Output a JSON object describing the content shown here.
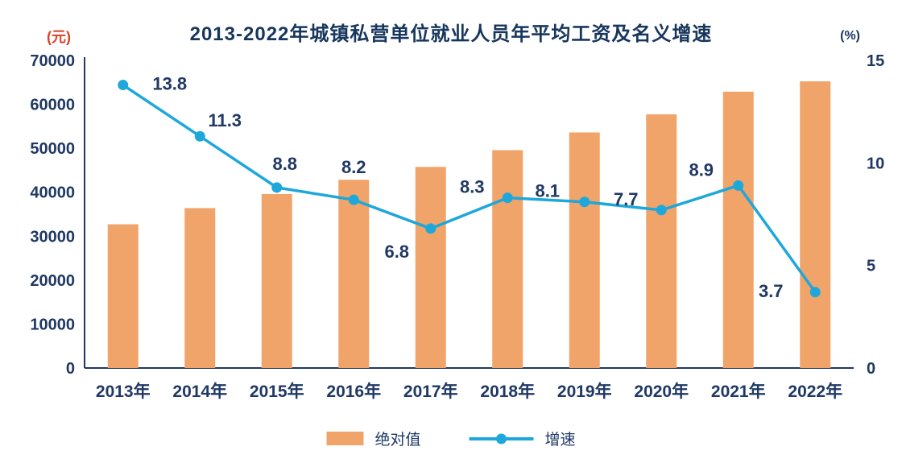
{
  "title": "2013-2022年城镇私营单位就业人员年平均工资及名义增速",
  "left_axis_unit": "(元)",
  "right_axis_unit": "(%)",
  "legend": {
    "bar_label": "绝对值",
    "line_label": "增速"
  },
  "chart_data": {
    "type": "bar+line",
    "title": "2013-2022年城镇私营单位就业人员年平均工资及名义增速",
    "categories": [
      "2013年",
      "2014年",
      "2015年",
      "2016年",
      "2017年",
      "2018年",
      "2019年",
      "2020年",
      "2021年",
      "2022年"
    ],
    "series": [
      {
        "name": "绝对值",
        "type": "bar",
        "axis": "left",
        "values": [
          32706,
          36390,
          39589,
          42833,
          45761,
          49575,
          53604,
          57727,
          62884,
          65237
        ]
      },
      {
        "name": "增速",
        "type": "line",
        "axis": "right",
        "values": [
          13.8,
          11.3,
          8.8,
          8.2,
          6.8,
          8.3,
          8.1,
          7.7,
          8.9,
          3.7
        ],
        "labels": [
          "13.8",
          "11.3",
          "8.8",
          "8.2",
          "6.8",
          "8.3",
          "8.1",
          "7.7",
          "8.9",
          "3.7"
        ]
      }
    ],
    "left_axis": {
      "unit": "(元)",
      "min": 0,
      "max": 70000,
      "ticks": [
        0,
        10000,
        20000,
        30000,
        40000,
        50000,
        60000,
        70000
      ]
    },
    "right_axis": {
      "unit": "(%)",
      "min": 0,
      "max": 15,
      "ticks": [
        0,
        5,
        10,
        15
      ]
    },
    "legend_position": "bottom",
    "grid": false,
    "colors": {
      "bar": "#F0A46A",
      "line": "#1EA7DA",
      "line_marker": "#1EA7DA",
      "text": "#1F3864",
      "axis": "#1F3864",
      "unit_left": "#D9432A"
    }
  }
}
